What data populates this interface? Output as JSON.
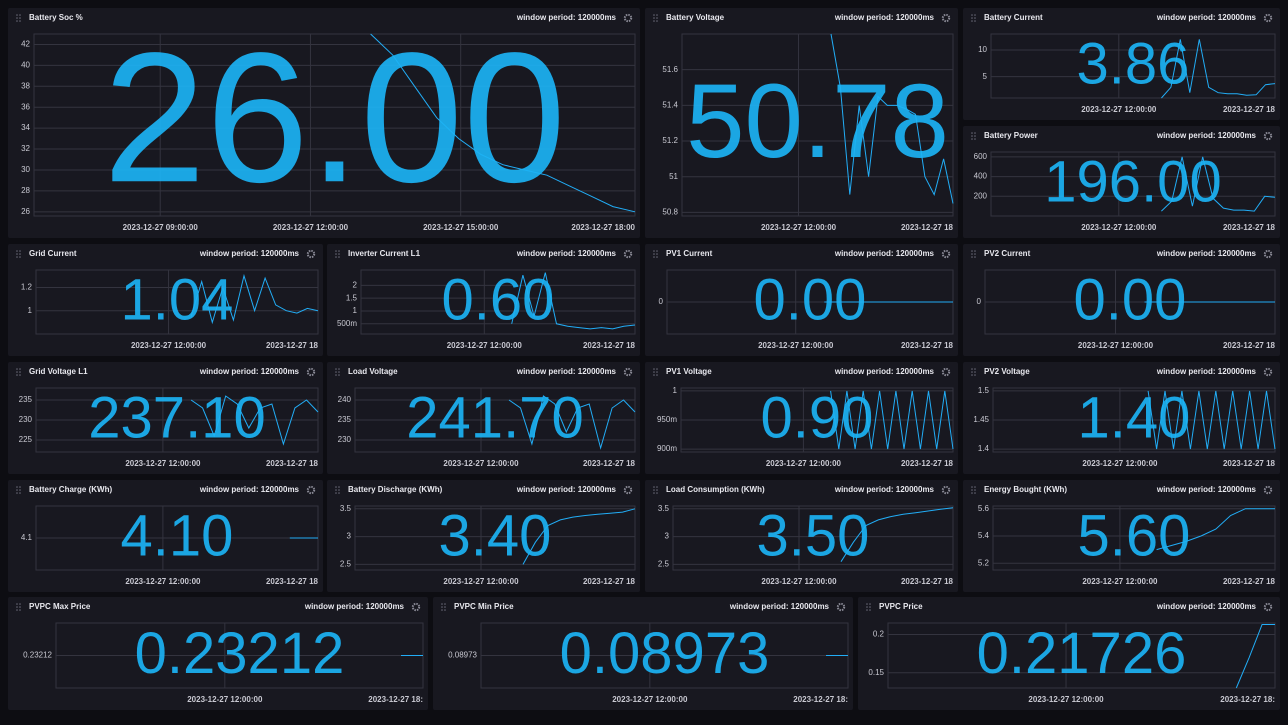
{
  "panels": [
    {
      "title": "Battery Soc %",
      "window_label": "window period: 120000ms",
      "value": "26.00",
      "ylim": [
        25.6,
        43
      ],
      "yticks": [
        26,
        28,
        30,
        32,
        34,
        36,
        38,
        40,
        42
      ],
      "xticks": [
        "2023-12-27 09:00:00",
        "2023-12-27 12:00:00",
        "2023-12-27 15:00:00",
        "2023-12-27 18:00"
      ],
      "line": [
        43,
        41,
        38,
        35,
        33,
        31.5,
        30.5,
        30,
        29.5,
        28.5,
        27.5,
        26.5,
        26
      ]
    },
    {
      "title": "Battery Voltage",
      "window_label": "window period: 120000ms",
      "value": "50.78",
      "ylim": [
        50.78,
        51.8
      ],
      "yticks": [
        50.8,
        51,
        51.2,
        51.4,
        51.6
      ],
      "xticks": [
        "2023-12-27 12:00:00",
        "2023-12-27 18"
      ],
      "line": [
        51.8,
        51.5,
        50.9,
        51.4,
        51.0,
        51.45,
        51.4,
        51.4,
        51.38,
        51.35,
        51.0,
        50.9,
        51.1,
        50.85
      ]
    },
    {
      "title": "Battery Current",
      "window_label": "window period: 120000ms",
      "value": "3.86",
      "ylim": [
        1,
        13
      ],
      "yticks": [
        5,
        10
      ],
      "xticks": [
        "2023-12-27 12:00:00",
        "2023-12-27 18"
      ],
      "line": [
        1,
        3,
        12,
        2,
        12,
        3,
        2,
        1.8,
        1.8,
        1.5,
        1.6,
        3.5,
        3.7
      ]
    },
    {
      "title": "Battery Power",
      "window_label": "window period: 120000ms",
      "value": "196.00",
      "ylim": [
        0,
        650
      ],
      "yticks": [
        200,
        400,
        600
      ],
      "xticks": [
        "2023-12-27 12:00:00",
        "2023-12-27 18"
      ],
      "line": [
        50,
        150,
        600,
        100,
        600,
        180,
        80,
        60,
        60,
        50,
        200,
        190
      ]
    },
    {
      "title": "Grid Current",
      "window_label": "window period: 120000ms",
      "value": "1.04",
      "ylim": [
        0.8,
        1.35
      ],
      "yticks": [
        1,
        1.2
      ],
      "xticks": [
        "2023-12-27 12:00:00",
        "2023-12-27 18"
      ],
      "line": [
        0.95,
        1.25,
        0.9,
        1.2,
        0.92,
        1.3,
        1.0,
        1.28,
        1.05,
        1.0,
        0.98,
        1.02,
        1.0
      ]
    },
    {
      "title": "Inverter Current L1",
      "window_label": "window period: 120000ms",
      "value": "0.60",
      "ylim": [
        0.1,
        2.6
      ],
      "yticks": [
        {
          "value": 0.5,
          "label": "500m"
        },
        1,
        1.5,
        2
      ],
      "xticks": [
        "2023-12-27 12:00:00",
        "2023-12-27 18"
      ],
      "line": [
        0.5,
        2.4,
        0.8,
        2.5,
        0.5,
        0.4,
        0.35,
        0.3,
        0.35,
        0.3,
        0.4,
        0.45
      ]
    },
    {
      "title": "PV1 Current",
      "window_label": "window period: 120000ms",
      "value": "0.00",
      "ylim": [
        -1,
        1
      ],
      "yticks": [
        0
      ],
      "xticks": [
        "2023-12-27 12:00:00",
        "2023-12-27 18"
      ],
      "line": [
        0,
        0,
        0,
        0,
        0
      ]
    },
    {
      "title": "PV2 Current",
      "window_label": "window period: 120000ms",
      "value": "0.00",
      "ylim": [
        -1,
        1
      ],
      "yticks": [
        0
      ],
      "xticks": [
        "2023-12-27 12:00:00",
        "2023-12-27 18"
      ],
      "line": [
        0,
        0,
        0,
        0,
        0
      ]
    },
    {
      "title": "Grid Voltage L1",
      "window_label": "window period: 120000ms",
      "value": "237.10",
      "ylim": [
        222,
        238
      ],
      "yticks": [
        225,
        230,
        235
      ],
      "xticks": [
        "2023-12-27 12:00:00",
        "2023-12-27 18"
      ],
      "line": [
        235,
        233,
        226,
        236,
        234,
        228,
        233,
        234,
        224,
        233,
        235,
        232
      ]
    },
    {
      "title": "Load Voltage",
      "window_label": "window period: 120000ms",
      "value": "241.70",
      "ylim": [
        227,
        243
      ],
      "yticks": [
        230,
        235,
        240
      ],
      "xticks": [
        "2023-12-27 12:00:00",
        "2023-12-27 18"
      ],
      "line": [
        240,
        238,
        229,
        241,
        239,
        232,
        238,
        239,
        228,
        238,
        240,
        237
      ]
    },
    {
      "title": "PV1 Voltage",
      "window_label": "window period: 120000ms",
      "value": "0.90",
      "ylim": [
        0.895,
        1.005
      ],
      "yticks": [
        {
          "value": 0.9,
          "label": "900m"
        },
        {
          "value": 0.95,
          "label": "950m"
        },
        1
      ],
      "xticks": [
        "2023-12-27 12:00:00",
        "2023-12-27 18"
      ],
      "line": [
        1,
        0.9,
        1,
        0.9,
        1,
        0.9,
        1,
        0.9,
        1,
        0.9,
        1,
        0.9,
        1,
        0.9,
        1,
        0.9
      ]
    },
    {
      "title": "PV2 Voltage",
      "window_label": "window period: 120000ms",
      "value": "1.40",
      "ylim": [
        1.395,
        1.505
      ],
      "yticks": [
        1.4,
        1.45,
        1.5
      ],
      "xticks": [
        "2023-12-27 12:00:00",
        "2023-12-27 18"
      ],
      "line": [
        1.5,
        1.4,
        1.5,
        1.4,
        1.5,
        1.4,
        1.5,
        1.4,
        1.5,
        1.4,
        1.5,
        1.4,
        1.5,
        1.4,
        1.5,
        1.4
      ]
    },
    {
      "title": "Battery Charge (KWh)",
      "window_label": "window period: 120000ms",
      "value": "4.10",
      "ylim": [
        4.0,
        4.2
      ],
      "yticks": [
        4.1
      ],
      "xticks": [
        "2023-12-27 12:00:00",
        "2023-12-27 18"
      ],
      "line": [
        4.1,
        4.1,
        4.1,
        4.1
      ]
    },
    {
      "title": "Battery Discharge (KWh)",
      "window_label": "window period: 120000ms",
      "value": "3.40",
      "ylim": [
        2.4,
        3.55
      ],
      "yticks": [
        2.5,
        3,
        3.5
      ],
      "xticks": [
        "2023-12-27 12:00:00",
        "2023-12-27 18"
      ],
      "line": [
        2.5,
        2.9,
        3.2,
        3.3,
        3.35,
        3.38,
        3.4,
        3.42,
        3.44,
        3.5
      ]
    },
    {
      "title": "Load Consumption (KWh)",
      "window_label": "window period: 120000ms",
      "value": "3.50",
      "ylim": [
        2.4,
        3.55
      ],
      "yticks": [
        2.5,
        3,
        3.5
      ],
      "xticks": [
        "2023-12-27 12:00:00",
        "2023-12-27 18"
      ],
      "line": [
        2.55,
        2.9,
        3.2,
        3.3,
        3.36,
        3.4,
        3.43,
        3.46,
        3.49,
        3.52
      ]
    },
    {
      "title": "Energy Bought (KWh)",
      "window_label": "window period: 120000ms",
      "value": "5.60",
      "ylim": [
        5.15,
        5.62
      ],
      "yticks": [
        5.2,
        5.4,
        5.6
      ],
      "xticks": [
        "2023-12-27 12:00:00",
        "2023-12-27 18"
      ],
      "line": [
        5.3,
        5.33,
        5.36,
        5.4,
        5.45,
        5.55,
        5.6,
        5.6,
        5.6
      ]
    },
    {
      "title": "PVPC Max Price",
      "window_label": "window period: 120000ms",
      "value": "0.23212",
      "ylim": [
        0.2321,
        0.23214
      ],
      "yticks": [
        0.23212
      ],
      "xticks": [
        "2023-12-27 12:00:00",
        "2023-12-27 18:"
      ],
      "line": [
        0.23212,
        0.23212
      ]
    },
    {
      "title": "PVPC Min Price",
      "window_label": "window period: 120000ms",
      "value": "0.08973",
      "ylim": [
        0.08971,
        0.08975
      ],
      "yticks": [
        0.08973
      ],
      "xticks": [
        "2023-12-27 12:00:00",
        "2023-12-27 18:"
      ],
      "line": [
        0.08973,
        0.08973
      ]
    },
    {
      "title": "PVPC Price",
      "window_label": "window period: 120000ms",
      "value": "0.21726",
      "ylim": [
        0.13,
        0.215
      ],
      "yticks": [
        0.15,
        0.2
      ],
      "xticks": [
        "2023-12-27 12:00:00",
        "2023-12-27 18:"
      ],
      "line": [
        0.13,
        0.17,
        0.213,
        0.213
      ]
    }
  ]
}
